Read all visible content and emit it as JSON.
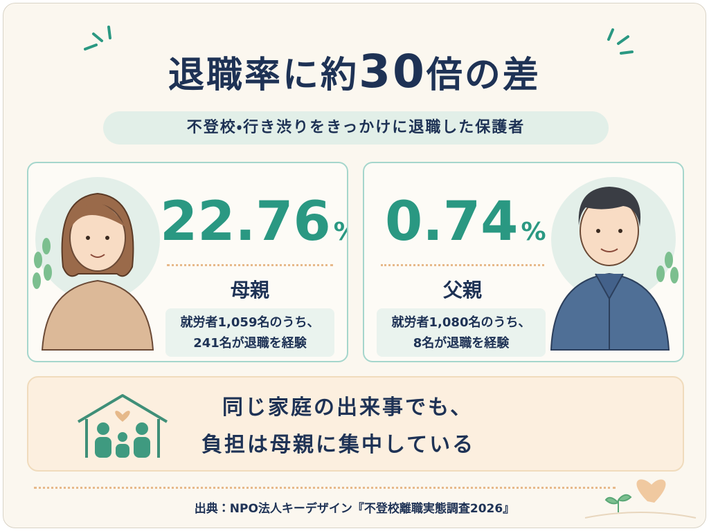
{
  "header": {
    "title_parts": [
      "退職率に約",
      "30",
      "倍の差"
    ],
    "subtitle": "不登校・行き渋りをきっかけに退職した保護者"
  },
  "cards": [
    {
      "rate": "22.76",
      "unit": "%",
      "label": "母親",
      "note": [
        "就労者1,059名のうち、",
        "241名が退職を経験"
      ]
    },
    {
      "rate": "0.74",
      "unit": "%",
      "label": "父親",
      "note": [
        "就労者1,080名のうち、",
        "8名が退職を経験"
      ]
    }
  ],
  "message": [
    "同じ家庭の出来事でも、",
    "負担は母親に集中している"
  ],
  "source": "出典：NPO法人キーデザイン『不登校離職実態調査2026』"
}
